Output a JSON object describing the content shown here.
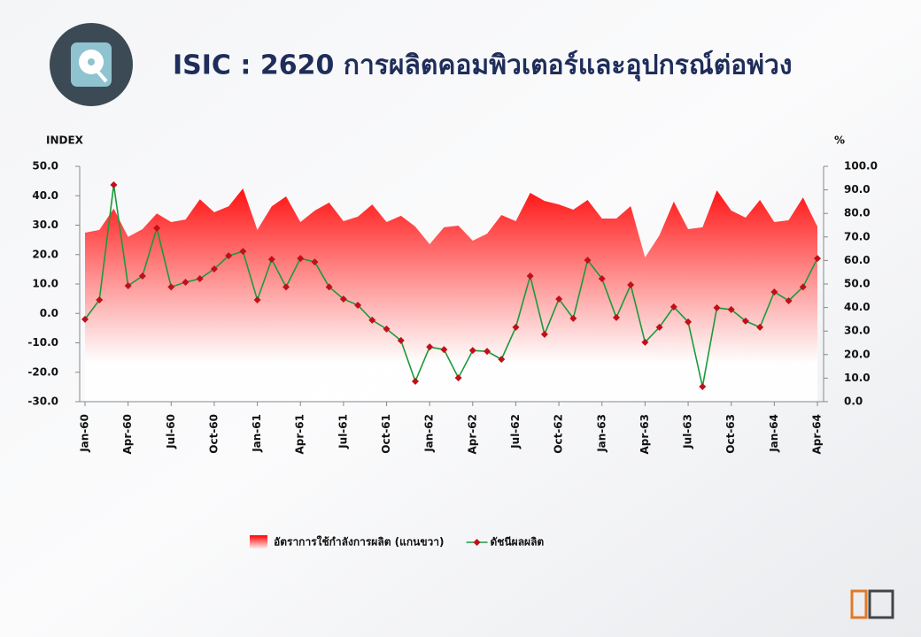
{
  "chart_data": {
    "type": "combo",
    "title": "ISIC : 2620 การผลิตคอมพิวเตอร์และอุปกรณ์ต่อพ่วง",
    "y_label": "INDEX",
    "y2_label": "%",
    "categories": [
      "Jan-60",
      null,
      null,
      "Apr-60",
      null,
      null,
      "Jul-60",
      null,
      null,
      "Oct-60",
      null,
      null,
      "Jan-61",
      null,
      null,
      "Apr-61",
      null,
      null,
      "Jul-61",
      null,
      null,
      "Oct-61",
      null,
      null,
      "Jan-62",
      null,
      null,
      "Apr-62",
      null,
      null,
      "Jul-62",
      null,
      null,
      "Oct-62",
      null,
      null,
      "Jan-63",
      null,
      null,
      "Apr-63",
      null,
      null,
      "Jul-63",
      null,
      null,
      "Oct-63",
      null,
      null,
      "Jan-64",
      null,
      null,
      "Apr-64"
    ],
    "series": [
      {
        "name": "อัตราการใช้กำลังการผลิต (แกนขวา)",
        "type": "area",
        "axis": "y2",
        "color": "#ff0000",
        "values": [
          71.8,
          73,
          82,
          70,
          73.3,
          80,
          76.3,
          77.4,
          86,
          80.5,
          83,
          90.6,
          73,
          83,
          87.2,
          76.3,
          81.2,
          84.6,
          76.7,
          78.6,
          83.8,
          76.3,
          79,
          74.4,
          66.9,
          74.1,
          74.8,
          68.4,
          71.4,
          79.3,
          76.7,
          88.7,
          85.3,
          83.8,
          81.6,
          85.7,
          77.8,
          77.8,
          83.1,
          61.3,
          70.7,
          85,
          73.3,
          74.1,
          89.8,
          81.2,
          78.2,
          85.7,
          76.3,
          77.1,
          86.8,
          74.4
        ]
      },
      {
        "name": "ดัชนีผลผลิต",
        "type": "line",
        "color": "#1a9a3a",
        "marker_color": "#c0101a",
        "values": [
          -2.0,
          4.6,
          43.7,
          9.4,
          12.7,
          29,
          9,
          10.6,
          11.8,
          15.1,
          19.6,
          21.1,
          4.6,
          18.4,
          9,
          18.7,
          17.5,
          9,
          4.9,
          2.8,
          -2.3,
          -5.3,
          -9.2,
          -23.1,
          -11.4,
          -12.3,
          -21.9,
          -12.6,
          -12.9,
          -15.6,
          -4.7,
          12.7,
          -7.1,
          4.9,
          -1.7,
          18.1,
          11.8,
          -1.4,
          9.7,
          -9.8,
          -4.7,
          2.2,
          -2.9,
          -24.9,
          1.9,
          1.3,
          -2.6,
          -4.7,
          7.3,
          4.3,
          9,
          18.7
        ]
      }
    ],
    "ylim": [
      -30,
      50
    ],
    "yticks": [
      {
        "value": -30,
        "label": "-30.0"
      },
      {
        "value": -20,
        "label": "-20.0"
      },
      {
        "value": -10,
        "label": "-10.0"
      },
      {
        "value": 0,
        "label": "0.0"
      },
      {
        "value": 10,
        "label": "10.0"
      },
      {
        "value": 20,
        "label": "20.0"
      },
      {
        "value": 30,
        "label": "30.0"
      },
      {
        "value": 40,
        "label": "40.0"
      },
      {
        "value": 50,
        "label": "50.0"
      }
    ],
    "y2lim": [
      0,
      100
    ],
    "y2ticks": [
      {
        "value": 0,
        "label": "0.0"
      },
      {
        "value": 10,
        "label": "10.0"
      },
      {
        "value": 20,
        "label": "20.0"
      },
      {
        "value": 30,
        "label": "30.0"
      },
      {
        "value": 40,
        "label": "40.0"
      },
      {
        "value": 50,
        "label": "50.0"
      },
      {
        "value": 60,
        "label": "60.0"
      },
      {
        "value": 70,
        "label": "70.0"
      },
      {
        "value": 80,
        "label": "80.0"
      },
      {
        "value": 90,
        "label": "90.0"
      },
      {
        "value": 100,
        "label": "100.0"
      }
    ],
    "grid": false,
    "legend": "bottom"
  }
}
